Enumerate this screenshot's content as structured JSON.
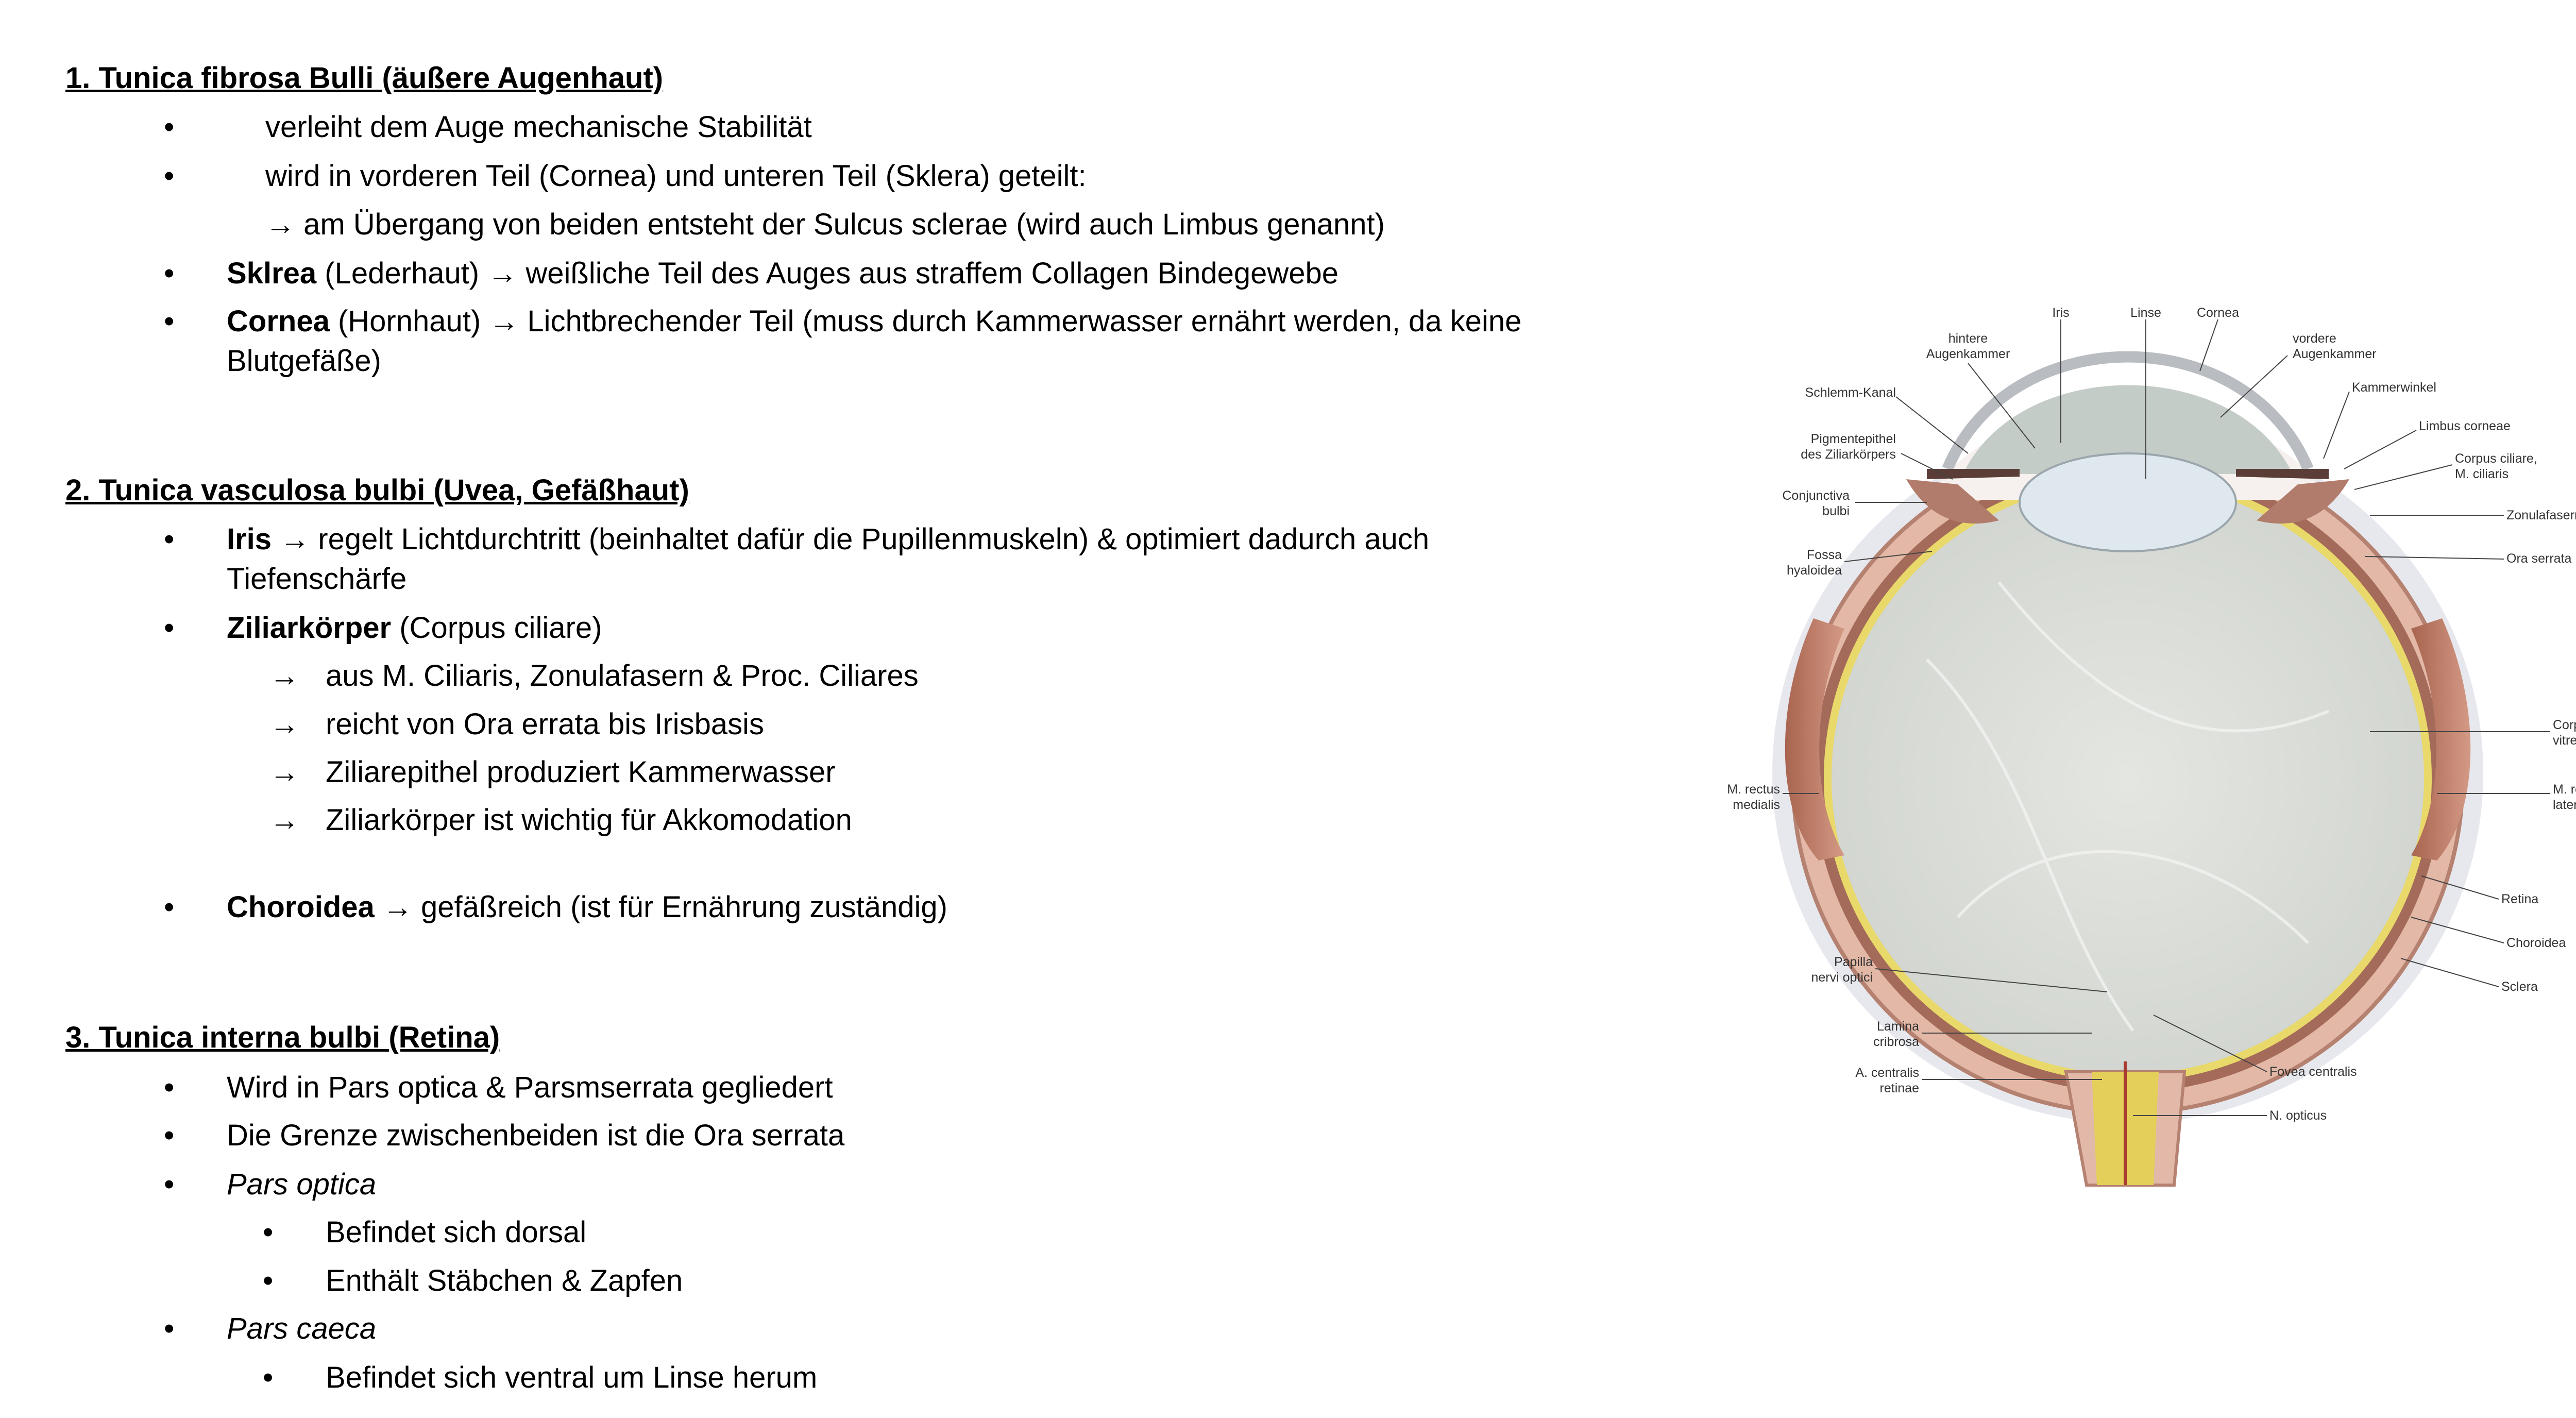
{
  "section1": {
    "heading": "1. Tunica fibrosa Bulli (äußere Augenhaut)",
    "items": [
      {
        "text": "verleiht dem Auge mechanische Stabilität"
      },
      {
        "text": "wird in vorderen Teil (Cornea) und unteren Teil (Sklera) geteilt:"
      },
      {
        "text": "→ am Übergang von beiden entsteht der Sulcus sclerae (wird auch Limbus genannt)"
      },
      {
        "term": "Sklrea",
        "text": " (Lederhaut) → weißliche Teil des Auges aus straffem Collagen Bindegewebe"
      },
      {
        "term": "Cornea",
        "text": " (Hornhaut) → Lichtbrechender Teil (muss durch Kammerwasser ernährt werden, da keine",
        "cont": "Blutgefäße)"
      }
    ]
  },
  "section2": {
    "heading": "2. Tunica vasculosa bulbi (Uvea, Gefäßhaut)",
    "items": [
      {
        "term": "Iris",
        "text": " → regelt Lichtdurchtritt (beinhaltet dafür die Pupillenmuskeln) & optimiert dadurch auch",
        "cont": "Tiefenschärfe"
      },
      {
        "term": "Ziliarkörper",
        "text": " (Corpus ciliare)"
      },
      {
        "arrow": "→",
        "text": "aus M. Ciliaris, Zonulafasern & Proc. Ciliares"
      },
      {
        "arrow": "→",
        "text": "reicht von Ora errata bis Irisbasis"
      },
      {
        "arrow": "→",
        "text": "Ziliarepithel produziert Kammerwasser"
      },
      {
        "arrow": "→",
        "text": "Ziliarkörper ist wichtig für Akkomodation"
      },
      {
        "term": "Choroidea",
        "text": " → gefäßreich (ist für Ernährung zuständig)"
      }
    ]
  },
  "section3": {
    "heading": "3. Tunica interna bulbi (Retina)",
    "items": [
      {
        "text": "Wird in Pars optica & Parsmserrata gegliedert"
      },
      {
        "text": "Die Grenze zwischenbeiden ist die Ora serrata"
      },
      {
        "text": "Pars optica"
      },
      {
        "text": "Befindet sich dorsal"
      },
      {
        "text": "Enthält Stäbchen & Zapfen"
      },
      {
        "text": "Pars caeca"
      },
      {
        "text": "Befindet sich ventral um Linse herum"
      }
    ]
  },
  "bullet_glyph": "•",
  "diagram": {
    "labels": {
      "iris": "Iris",
      "linse": "Linse",
      "cornea": "Cornea",
      "hintere_1": "hintere",
      "hintere_2": "Augenkammer",
      "vordere_1": "vordere",
      "vordere_2": "Augenkammer",
      "schlemm": "Schlemm-Kanal",
      "kammerwinkel": "Kammerwinkel",
      "pigment_1": "Pigmentepithel",
      "pigment_2": "des Ziliarkörpers",
      "limbus": "Limbus corneae",
      "corpus_ciliare_1": "Corpus ciliare,",
      "corpus_ciliare_2": "M. ciliaris",
      "conjunctiva_1": "Conjunctiva",
      "conjunctiva_2": "bulbi",
      "zonulafasern": "Zonulafasern",
      "fossa_1": "Fossa",
      "fossa_2": "hyaloidea",
      "ora_serrata": "Ora serrata",
      "vitreum_1": "Corpus",
      "vitreum_2": "vitreum",
      "rectus_med_1": "M. rectus",
      "rectus_med_2": "medialis",
      "rectus_lat_1": "M. rectus",
      "rectus_lat_2": "lateralis",
      "retina": "Retina",
      "choroidea": "Choroidea",
      "sclera": "Sclera",
      "papilla_1": "Papilla",
      "papilla_2": "nervi optici",
      "lamina_1": "Lamina",
      "lamina_2": "cribrosa",
      "a_centralis_1": "A. centralis",
      "a_centralis_2": "retinae",
      "fovea": "Fovea centralis",
      "n_opticus": "N. opticus"
    }
  }
}
